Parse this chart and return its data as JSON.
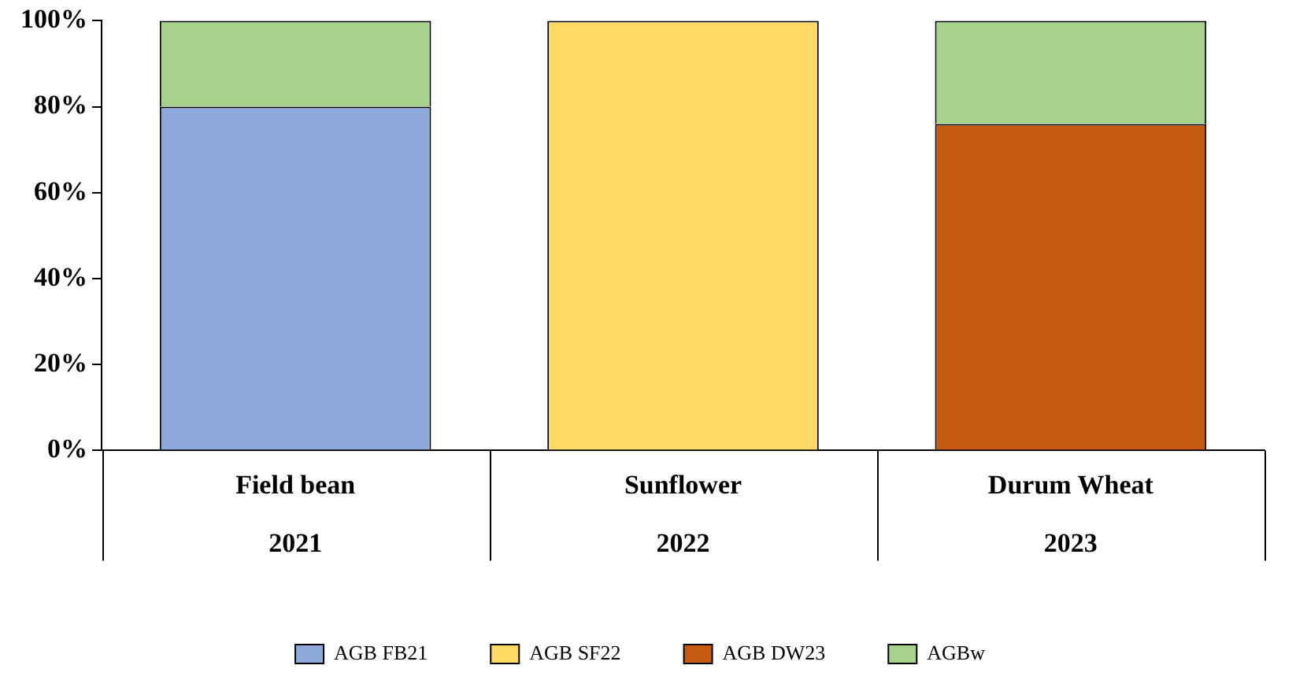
{
  "chart_data": {
    "type": "bar",
    "stacked": true,
    "categories": [
      "Field bean\n2021",
      "Sunflower\n2022",
      "Durum Wheat\n2023"
    ],
    "series": [
      {
        "name": "AGB FB21",
        "color": "#8eaadb",
        "values": [
          80,
          null,
          null
        ]
      },
      {
        "name": "AGB SF22",
        "color": "#ffd966",
        "values": [
          null,
          100,
          null
        ]
      },
      {
        "name": "AGB DW23",
        "color": "#c55a11",
        "values": [
          null,
          null,
          76
        ]
      },
      {
        "name": "AGBw",
        "color": "#a9d18e",
        "values": [
          20,
          null,
          24
        ]
      }
    ],
    "ylim": [
      0,
      100
    ],
    "yticks": [
      {
        "value": 0,
        "label": "0%"
      },
      {
        "value": 20,
        "label": "20%"
      },
      {
        "value": 40,
        "label": "40%"
      },
      {
        "value": 60,
        "label": "60%"
      },
      {
        "value": 80,
        "label": "80%"
      },
      {
        "value": 100,
        "label": "100%"
      }
    ],
    "grid": false,
    "legend": "bottom"
  }
}
